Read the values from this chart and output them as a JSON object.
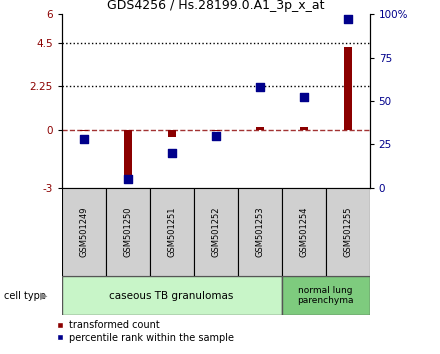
{
  "title": "GDS4256 / Hs.28199.0.A1_3p_x_at",
  "samples": [
    "GSM501249",
    "GSM501250",
    "GSM501251",
    "GSM501252",
    "GSM501253",
    "GSM501254",
    "GSM501255"
  ],
  "transformed_count": [
    -0.05,
    -2.8,
    -0.35,
    -0.05,
    0.15,
    0.12,
    4.3
  ],
  "percentile_rank": [
    28,
    5,
    20,
    30,
    58,
    52,
    97
  ],
  "ylim_left": [
    -3,
    6
  ],
  "ylim_right": [
    0,
    100
  ],
  "yticks_left": [
    -3,
    0,
    2.25,
    4.5,
    6
  ],
  "yticks_left_labels": [
    "-3",
    "0",
    "2.25",
    "4.5",
    "6"
  ],
  "yticks_right": [
    0,
    25,
    50,
    75,
    100
  ],
  "yticks_right_labels": [
    "0",
    "25",
    "50",
    "75",
    "100%"
  ],
  "hlines": [
    4.5,
    2.25
  ],
  "dashed_hline": 0,
  "bar_color": "#8B0000",
  "marker_color": "#00008B",
  "group1_label": "caseous TB granulomas",
  "group2_label": "normal lung\nparenchyma",
  "group1_color": "#c8f5c8",
  "group2_color": "#7ecb7e",
  "cell_type_label": "cell type",
  "legend_red": "transformed count",
  "legend_blue": "percentile rank within the sample",
  "bar_width": 0.18,
  "marker_size": 30
}
